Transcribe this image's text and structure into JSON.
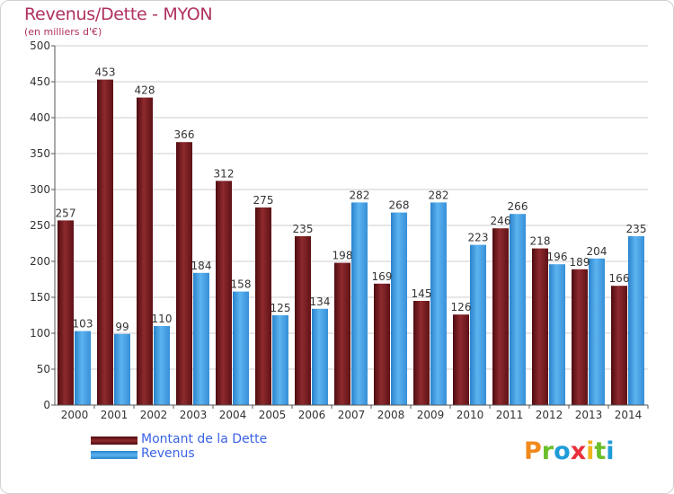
{
  "title": "Revenus/Dette - MYON",
  "subtitle": "(en milliers d'€)",
  "logo_letters": [
    {
      "char": "P",
      "color": "#f08a1c"
    },
    {
      "char": "r",
      "color": "#6bbf2a"
    },
    {
      "char": "o",
      "color": "#1e9bd8"
    },
    {
      "char": "x",
      "color": "#e8303a"
    },
    {
      "char": "i",
      "color": "#f0b41c"
    },
    {
      "char": "t",
      "color": "#6bbf2a"
    },
    {
      "char": "i",
      "color": "#1e9bd8"
    }
  ],
  "colors": {
    "dette": "#7a1f22",
    "revenus": "#3d9ee3",
    "grid": "#cccccc",
    "axis_text": "#333333"
  },
  "chart_data": {
    "type": "bar",
    "categories": [
      "2000",
      "2001",
      "2002",
      "2003",
      "2004",
      "2005",
      "2006",
      "2007",
      "2008",
      "2009",
      "2010",
      "2011",
      "2012",
      "2013",
      "2014"
    ],
    "series": [
      {
        "name": "Montant de la Dette",
        "values": [
          257,
          453,
          428,
          366,
          312,
          275,
          235,
          198,
          169,
          145,
          126,
          246,
          218,
          189,
          166
        ]
      },
      {
        "name": "Revenus",
        "values": [
          103,
          99,
          110,
          184,
          158,
          125,
          134,
          282,
          268,
          282,
          223,
          266,
          196,
          204,
          235
        ]
      }
    ],
    "yticks": [
      0,
      50,
      100,
      150,
      200,
      250,
      300,
      350,
      400,
      450,
      500
    ],
    "ylim": [
      0,
      500
    ],
    "grid": true,
    "legend_position": "bottom-left"
  }
}
